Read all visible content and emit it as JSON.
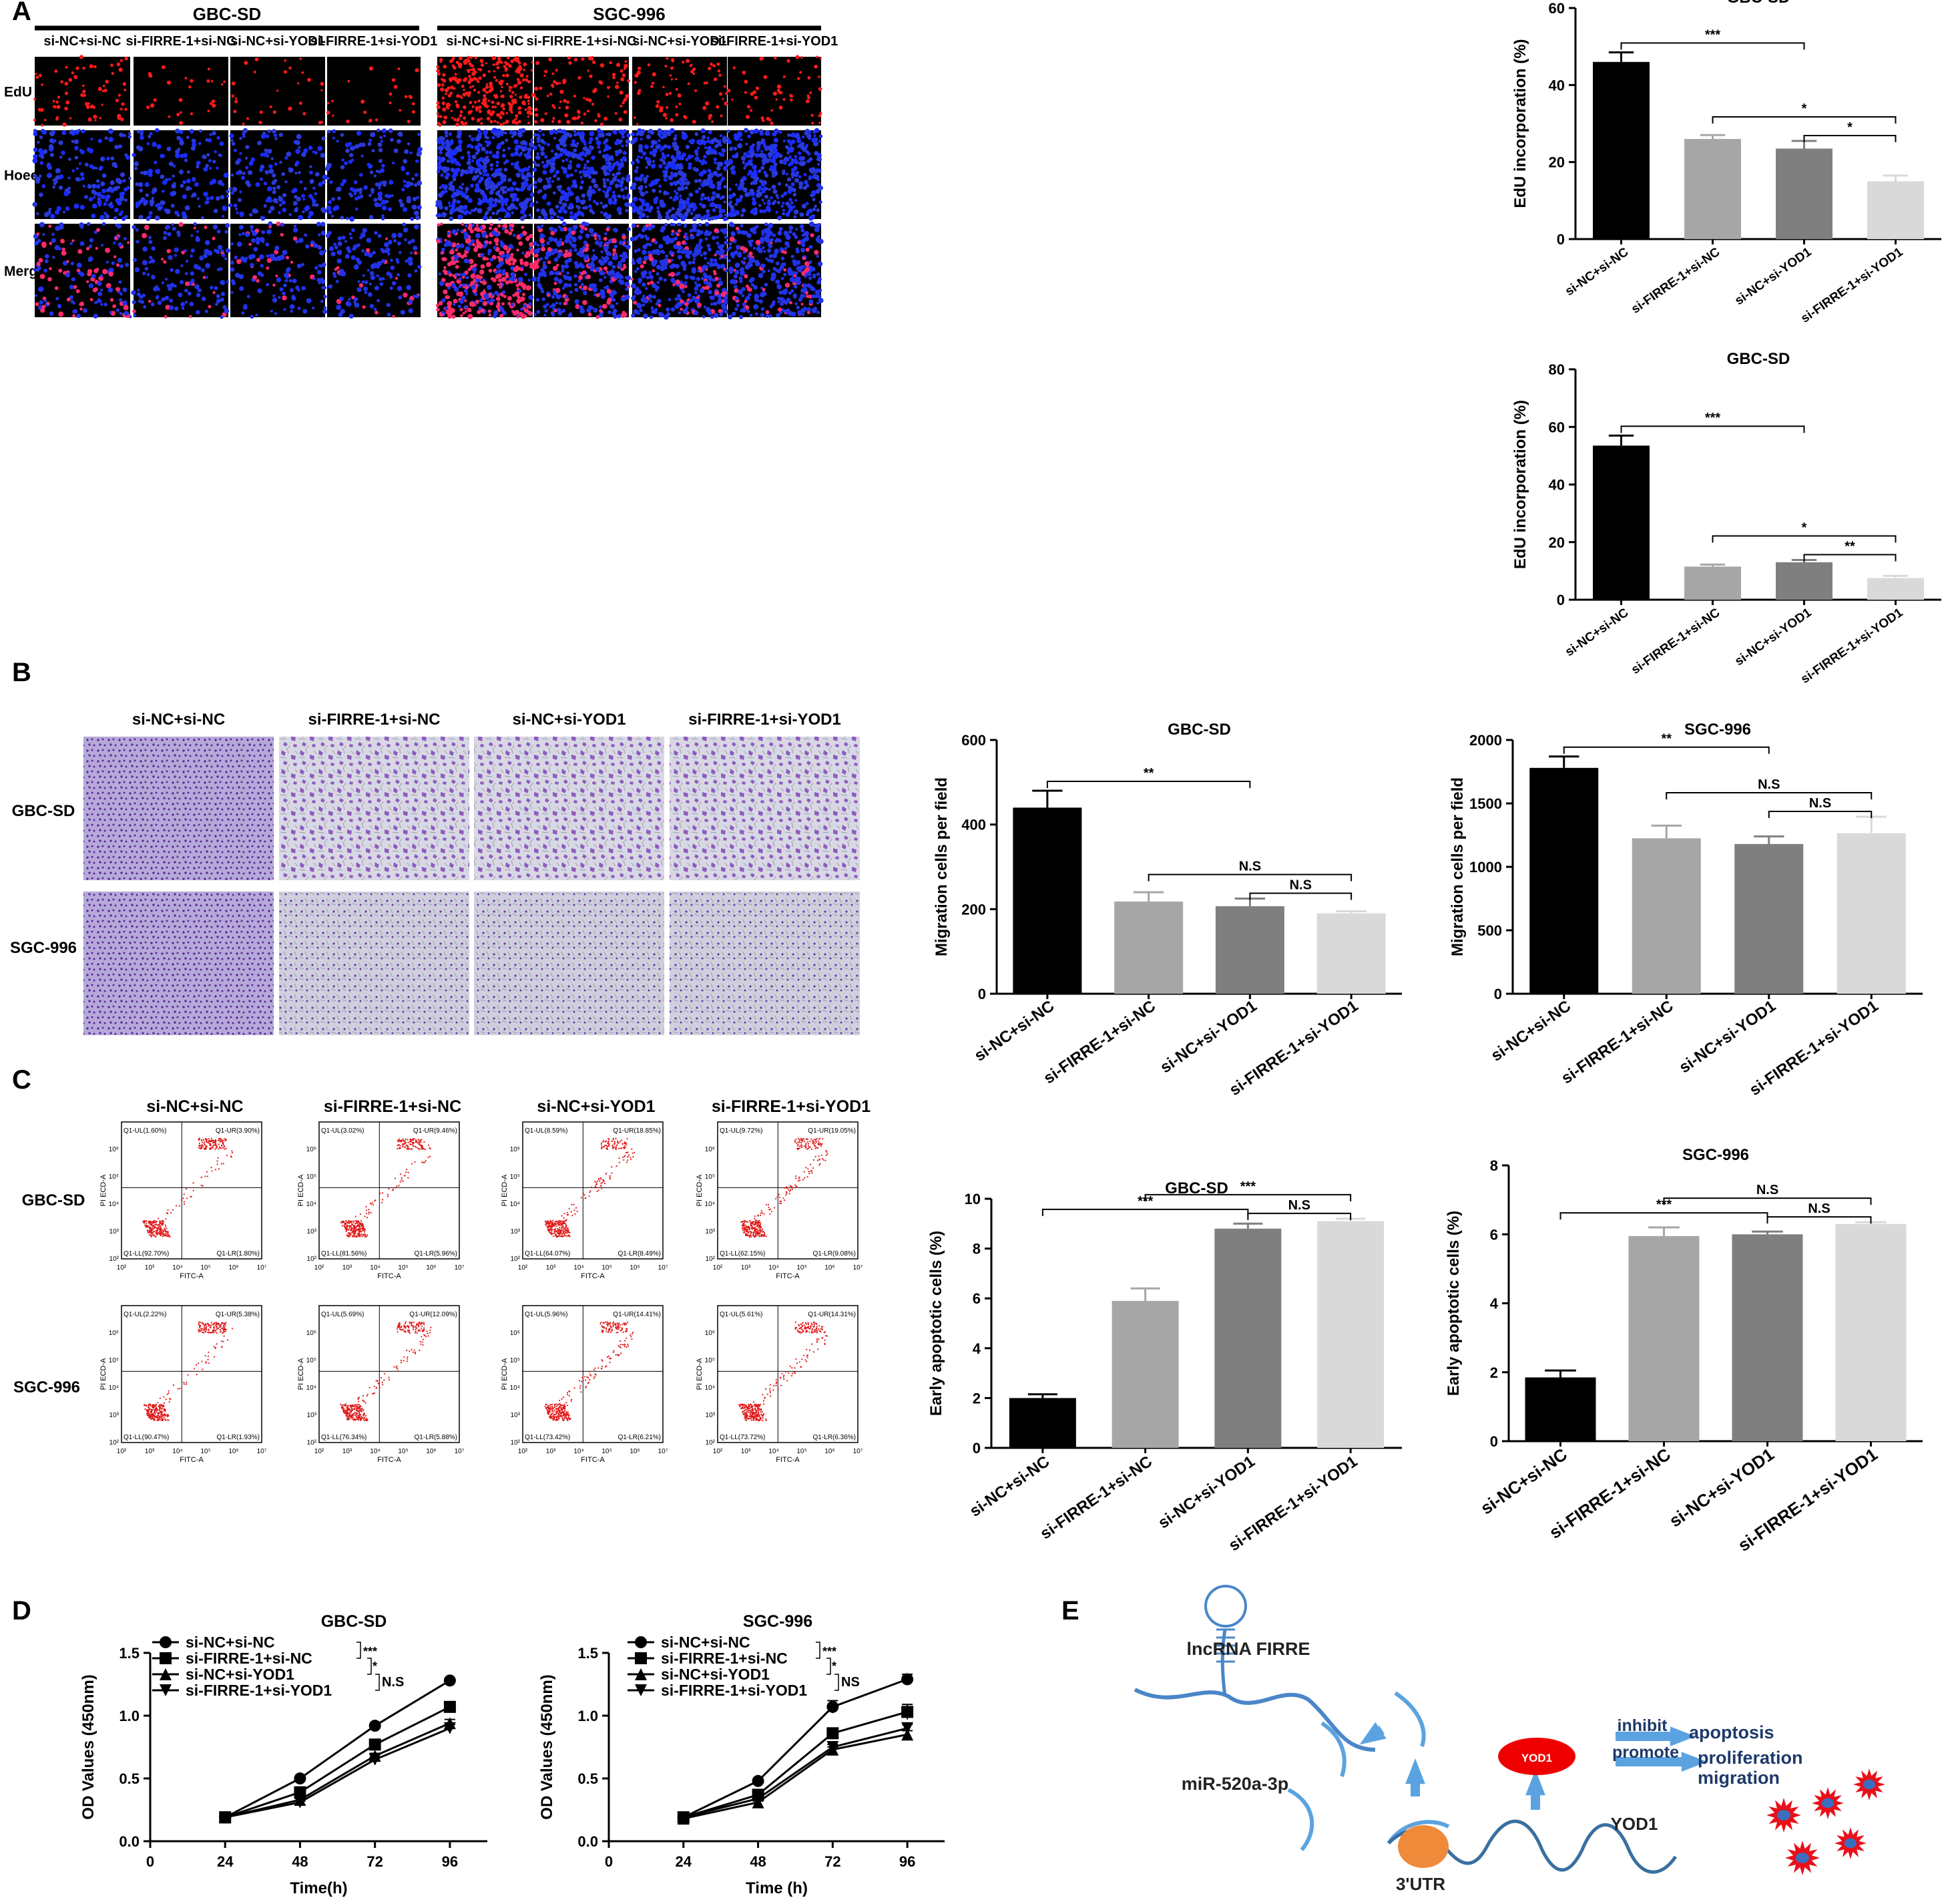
{
  "panels": {
    "A": "A",
    "B": "B",
    "C": "C",
    "D": "D",
    "E": "E"
  },
  "groups": [
    "si-NC+si-NC",
    "si-FIRRE-1+si-NC",
    "si-NC+si-YOD1",
    "si-FIRRE-1+si-YOD1"
  ],
  "cell_lines": [
    "GBC-SD",
    "SGC-996"
  ],
  "micro_rows": [
    "EdU",
    "Hoechst",
    "Merge"
  ],
  "flow": {
    "x_axis": "FITC-A",
    "y_axis": "PI ECD-A",
    "ticks": [
      "10²",
      "10³",
      "10⁴",
      "10⁵",
      "10⁶",
      "10⁷"
    ],
    "quads": [
      [
        [
          "Q1-UL(1.60%)",
          "Q1-UR(3.90%)",
          "Q1-LL(92.70%)",
          "Q1-LR(1.80%)"
        ],
        [
          "Q1-UL(3.02%)",
          "Q1-UR(9.46%)",
          "Q1-LL(81.56%)",
          "Q1-LR(5.96%)"
        ],
        [
          "Q1-UL(8.59%)",
          "Q1-UR(18.85%)",
          "Q1-LL(64.07%)",
          "Q1-LR(8.49%)"
        ],
        [
          "Q1-UL(9.72%)",
          "Q1-UR(19.05%)",
          "Q1-LL(62.15%)",
          "Q1-LR(9.08%)"
        ]
      ],
      [
        [
          "Q1-UL(2.22%)",
          "Q1-UR(5.38%)",
          "Q1-LL(90.47%)",
          "Q1-LR(1.93%)"
        ],
        [
          "Q1-UL(5.69%)",
          "Q1-UR(12.09%)",
          "Q1-LL(76.34%)",
          "Q1-LR(5.88%)"
        ],
        [
          "Q1-UL(5.96%)",
          "Q1-UR(14.41%)",
          "Q1-LL(73.42%)",
          "Q1-LR(6.21%)"
        ],
        [
          "Q1-UL(5.61%)",
          "Q1-UR(14.31%)",
          "Q1-LL(73.72%)",
          "Q1-LR(6.36%)"
        ]
      ]
    ]
  },
  "diagram": {
    "lncrna": "lncRNA FIRRE",
    "mirna": "miR-520a-3p",
    "utr": "3'UTR",
    "protein": "YOD1",
    "gene": "YOD1",
    "inhibit": "inhibit",
    "promote": "promote",
    "apoptosis": "apoptosis",
    "proliferation": "proliferation",
    "migration": "migration"
  },
  "chart_data": [
    {
      "id": "A1",
      "type": "bar",
      "title": "GBC-SD",
      "ylabel": "EdU incorporation (%)",
      "categories": [
        "si-NC+si-NC",
        "si-FIRRE-1+si-NC",
        "si-NC+si-YOD1",
        "si-FIRRE-1+si-YOD1"
      ],
      "values": [
        46,
        26,
        23.5,
        15
      ],
      "errors": [
        2.5,
        1,
        2,
        1.5
      ],
      "ylim": [
        0,
        60
      ],
      "ticks": [
        0,
        20,
        40,
        60
      ],
      "colors": [
        "#000000",
        "#a6a6a6",
        "#7f7f7f",
        "#d9d9d9"
      ],
      "sig": [
        {
          "from": 0,
          "to": 2,
          "label": "***"
        },
        {
          "from": 1,
          "to": 3,
          "label": "*"
        },
        {
          "from": 2,
          "to": 3,
          "label": "*"
        }
      ]
    },
    {
      "id": "A2",
      "type": "bar",
      "title": "GBC-SD",
      "ylabel": "EdU incorporation (%)",
      "categories": [
        "si-NC+si-NC",
        "si-FIRRE-1+si-NC",
        "si-NC+si-YOD1",
        "si-FIRRE-1+si-YOD1"
      ],
      "values": [
        53.5,
        11.5,
        13,
        7.5
      ],
      "errors": [
        3.5,
        0.7,
        0.8,
        0.8
      ],
      "ylim": [
        0,
        80
      ],
      "ticks": [
        0,
        20,
        40,
        60,
        80
      ],
      "colors": [
        "#000000",
        "#a6a6a6",
        "#7f7f7f",
        "#d9d9d9"
      ],
      "sig": [
        {
          "from": 0,
          "to": 2,
          "label": "***"
        },
        {
          "from": 1,
          "to": 3,
          "label": "*"
        },
        {
          "from": 2,
          "to": 3,
          "label": "**"
        }
      ]
    },
    {
      "id": "B1",
      "type": "bar",
      "title": "GBC-SD",
      "ylabel": "Migration cells per field",
      "categories": [
        "si-NC+si-NC",
        "si-FIRRE-1+si-NC",
        "si-NC+si-YOD1",
        "si-FIRRE-1+si-YOD1"
      ],
      "values": [
        440,
        218,
        207,
        190
      ],
      "errors": [
        40,
        22,
        18,
        5
      ],
      "ylim": [
        0,
        600
      ],
      "ticks": [
        0,
        200,
        400,
        600
      ],
      "colors": [
        "#000000",
        "#a6a6a6",
        "#7f7f7f",
        "#d9d9d9"
      ],
      "sig": [
        {
          "from": 0,
          "to": 2,
          "label": "**"
        },
        {
          "from": 1,
          "to": 3,
          "label": "N.S"
        },
        {
          "from": 2,
          "to": 3,
          "label": "N.S"
        }
      ]
    },
    {
      "id": "B2",
      "type": "bar",
      "title": "SGC-996",
      "ylabel": "Migration cells per field",
      "categories": [
        "si-NC+si-NC",
        "si-FIRRE-1+si-NC",
        "si-NC+si-YOD1",
        "si-FIRRE-1+si-YOD1"
      ],
      "values": [
        1780,
        1225,
        1180,
        1265
      ],
      "errors": [
        90,
        100,
        60,
        130
      ],
      "ylim": [
        0,
        2000
      ],
      "ticks": [
        0,
        500,
        1000,
        1500,
        2000
      ],
      "colors": [
        "#000000",
        "#a6a6a6",
        "#7f7f7f",
        "#d9d9d9"
      ],
      "sig": [
        {
          "from": 0,
          "to": 2,
          "label": "**"
        },
        {
          "from": 1,
          "to": 3,
          "label": "N.S"
        },
        {
          "from": 2,
          "to": 3,
          "label": "N.S"
        }
      ]
    },
    {
      "id": "C1",
      "type": "bar",
      "title": "GBC-SD",
      "ylabel": "Early apoptotic cells (%)",
      "categories": [
        "si-NC+si-NC",
        "si-FIRRE-1+si-NC",
        "si-NC+si-YOD1",
        "si-FIRRE-1+si-YOD1"
      ],
      "values": [
        2.0,
        5.9,
        8.8,
        9.1
      ],
      "errors": [
        0.15,
        0.5,
        0.2,
        0.1
      ],
      "ylim": [
        0,
        10
      ],
      "ticks": [
        0,
        2,
        4,
        6,
        8,
        10
      ],
      "colors": [
        "#000000",
        "#a6a6a6",
        "#7f7f7f",
        "#d9d9d9"
      ],
      "sig": [
        {
          "from": 0,
          "to": 2,
          "label": "***"
        },
        {
          "from": 1,
          "to": 3,
          "label": "***"
        },
        {
          "from": 2,
          "to": 3,
          "label": "N.S"
        }
      ]
    },
    {
      "id": "C2",
      "type": "bar",
      "title": "SGC-996",
      "ylabel": "Early apoptotic cells (%)",
      "categories": [
        "si-NC+si-NC",
        "si-FIRRE-1+si-NC",
        "si-NC+si-YOD1",
        "si-FIRRE-1+si-YOD1"
      ],
      "values": [
        1.85,
        5.95,
        6.0,
        6.3
      ],
      "errors": [
        0.2,
        0.25,
        0.08,
        0.05
      ],
      "ylim": [
        0,
        8
      ],
      "ticks": [
        0,
        2,
        4,
        6,
        8
      ],
      "colors": [
        "#000000",
        "#a6a6a6",
        "#7f7f7f",
        "#d9d9d9"
      ],
      "sig": [
        {
          "from": 0,
          "to": 2,
          "label": "***"
        },
        {
          "from": 1,
          "to": 3,
          "label": "N.S"
        },
        {
          "from": 2,
          "to": 3,
          "label": "N.S"
        }
      ]
    },
    {
      "id": "D1",
      "type": "line",
      "title": "GBC-SD",
      "xlabel": "Time(h)",
      "ylabel": "OD Values (450nm)",
      "x": [
        24,
        48,
        72,
        96
      ],
      "xlim": [
        0,
        108
      ],
      "xticks": [
        0,
        24,
        48,
        72,
        96
      ],
      "ylim": [
        0,
        1.5
      ],
      "yticks": [
        0,
        0.5,
        1.0,
        1.5
      ],
      "series": [
        {
          "name": "si-NC+si-NC",
          "values": [
            0.19,
            0.5,
            0.92,
            1.28
          ],
          "errors": [
            0.01,
            0.01,
            0.01,
            0.01
          ],
          "marker": "circle"
        },
        {
          "name": "si-FIRRE-1+si-NC",
          "values": [
            0.19,
            0.39,
            0.77,
            1.07
          ],
          "errors": [
            0.01,
            0.02,
            0.03,
            0.04
          ],
          "marker": "square"
        },
        {
          "name": "si-NC+si-YOD1",
          "values": [
            0.19,
            0.33,
            0.68,
            0.94
          ],
          "errors": [
            0.01,
            0.01,
            0.02,
            0.03
          ],
          "marker": "triangle"
        },
        {
          "name": "si-FIRRE-1+si-YOD1",
          "values": [
            0.19,
            0.31,
            0.65,
            0.9
          ],
          "errors": [
            0.01,
            0.01,
            0.02,
            0.03
          ],
          "marker": "triangle-down"
        }
      ],
      "sig": [
        "***",
        "*",
        "N.S"
      ]
    },
    {
      "id": "D2",
      "type": "line",
      "title": "SGC-996",
      "xlabel": "Time (h)",
      "ylabel": "OD Values (450nm)",
      "x": [
        24,
        48,
        72,
        96
      ],
      "xlim": [
        0,
        108
      ],
      "xticks": [
        0,
        24,
        48,
        72,
        96
      ],
      "ylim": [
        0,
        1.5
      ],
      "yticks": [
        0,
        0.5,
        1.0,
        1.5
      ],
      "series": [
        {
          "name": "si-NC+si-NC",
          "values": [
            0.19,
            0.48,
            1.07,
            1.29
          ],
          "errors": [
            0.01,
            0.01,
            0.05,
            0.04
          ],
          "marker": "circle"
        },
        {
          "name": "si-FIRRE-1+si-NC",
          "values": [
            0.19,
            0.37,
            0.86,
            1.03
          ],
          "errors": [
            0.01,
            0.01,
            0.02,
            0.06
          ],
          "marker": "square"
        },
        {
          "name": "si-NC+si-YOD1",
          "values": [
            0.18,
            0.31,
            0.73,
            0.85
          ],
          "errors": [
            0.01,
            0.01,
            0.02,
            0.03
          ],
          "marker": "triangle"
        },
        {
          "name": "si-FIRRE-1+si-YOD1",
          "values": [
            0.19,
            0.34,
            0.75,
            0.9
          ],
          "errors": [
            0.01,
            0.01,
            0.02,
            0.03
          ],
          "marker": "triangle-down"
        }
      ],
      "sig": [
        "***",
        "*",
        "NS"
      ]
    }
  ]
}
